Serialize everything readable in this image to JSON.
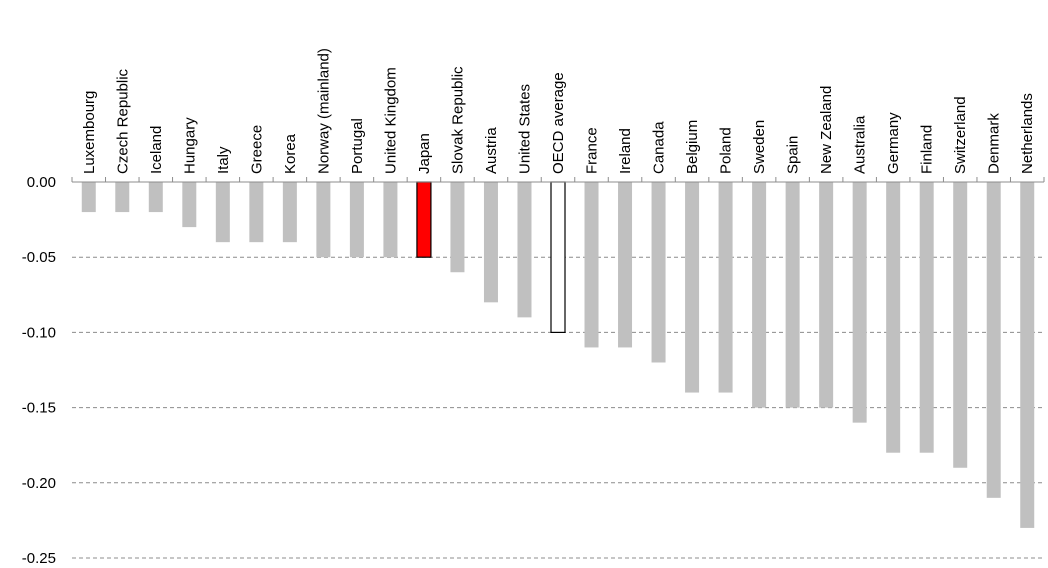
{
  "chart_data": {
    "type": "bar",
    "categories": [
      "Luxembourg",
      "Czech Republic",
      "Iceland",
      "Hungary",
      "Italy",
      "Greece",
      "Korea",
      "Norway (mainland)",
      "Portugal",
      "United Kingdom",
      "Japan",
      "Slovak Republic",
      "Austria",
      "United States",
      "OECD average",
      "France",
      "Ireland",
      "Canada",
      "Belgium",
      "Poland",
      "Sweden",
      "Spain",
      "New Zealand",
      "Australia",
      "Germany",
      "Finland",
      "Switzerland",
      "Denmark",
      "Netherlands"
    ],
    "values": [
      -0.02,
      -0.02,
      -0.02,
      -0.03,
      -0.04,
      -0.04,
      -0.04,
      -0.05,
      -0.05,
      -0.05,
      -0.05,
      -0.06,
      -0.08,
      -0.09,
      -0.1,
      -0.11,
      -0.11,
      -0.12,
      -0.14,
      -0.14,
      -0.15,
      -0.15,
      -0.15,
      -0.16,
      -0.18,
      -0.18,
      -0.19,
      -0.21,
      -0.23
    ],
    "highlight": {
      "Japan": "#ff0000",
      "OECD average": "#ffffff"
    },
    "bar_color": "#c0c0c0",
    "ylim": [
      -0.25,
      0.0
    ],
    "yticks": [
      0.0,
      -0.05,
      -0.1,
      -0.15,
      -0.2,
      -0.25
    ],
    "ytick_labels": [
      "0.00",
      "-0.05",
      "-0.10",
      "-0.15",
      "-0.20",
      "-0.25"
    ],
    "grid": "horizontal dashed",
    "legend": "none",
    "title": "",
    "xlabel": "",
    "ylabel": ""
  }
}
